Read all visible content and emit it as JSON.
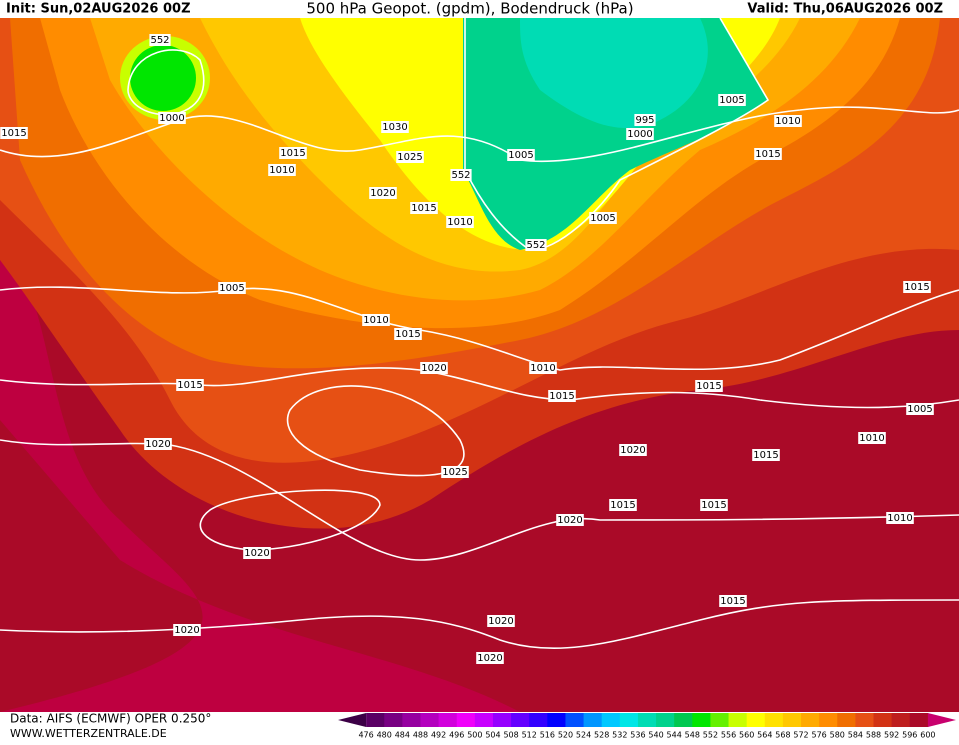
{
  "header": {
    "init": "Init: Sun,02AUG2026 00Z",
    "title": "500 hPa Geopot. (gpdm), Bodendruck (hPa)",
    "valid": "Valid: Thu,06AUG2026 00Z"
  },
  "footer": {
    "source": "Data: AIFS (ECMWF) OPER 0.250°",
    "site": "WWW.WETTERZENTRALE.DE"
  },
  "contour_labels": [
    "552",
    "1000",
    "1015",
    "1015",
    "1010",
    "1030",
    "1025",
    "1020",
    "1015",
    "552",
    "1010",
    "1005",
    "995",
    "1000",
    "1005",
    "1010",
    "1015",
    "1005",
    "552",
    "1005",
    "1010",
    "1015",
    "1020",
    "1015",
    "1010",
    "1015",
    "1020",
    "1025",
    "1020",
    "1015",
    "1015",
    "1005",
    "1010",
    "1015",
    "1020",
    "1015",
    "1015",
    "1020",
    "1010",
    "1020",
    "1020",
    "1020",
    "1015"
  ],
  "scale": {
    "labels": [
      "476",
      "480",
      "484",
      "488",
      "492",
      "496",
      "500",
      "504",
      "508",
      "512",
      "516",
      "520",
      "524",
      "528",
      "532",
      "536",
      "540",
      "544",
      "548",
      "552",
      "556",
      "560",
      "564",
      "568",
      "572",
      "576",
      "580",
      "584",
      "588",
      "592",
      "596",
      "600"
    ],
    "colors": [
      "#3c0046",
      "#5a0064",
      "#780082",
      "#9600a0",
      "#b400be",
      "#d200dc",
      "#f000fa",
      "#c800ff",
      "#9600ff",
      "#6400ff",
      "#3200ff",
      "#0000ff",
      "#0050ff",
      "#0096ff",
      "#00c8ff",
      "#00e6e6",
      "#00dcb4",
      "#00d28c",
      "#00c850",
      "#00e600",
      "#64f000",
      "#c8ff00",
      "#ffff00",
      "#ffe100",
      "#ffc800",
      "#ffaa00",
      "#ff8c00",
      "#f06e00",
      "#e65014",
      "#d23214",
      "#be1e1e",
      "#aa0a28",
      "#c8006e"
    ]
  }
}
